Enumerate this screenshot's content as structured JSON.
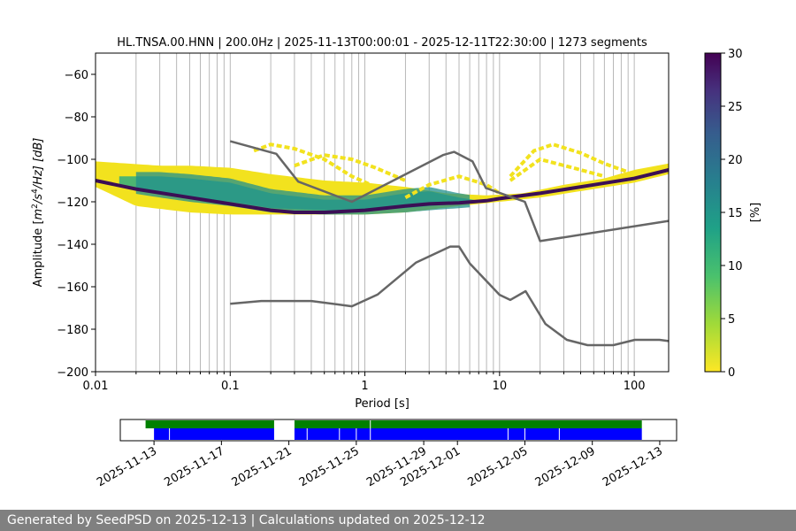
{
  "footer": {
    "text": "Generated by SeedPSD on 2025-12-13 | Calculations updated on 2025-12-12"
  },
  "chart_data": [
    {
      "type": "heatmap",
      "title": "HL.TNSA.00.HNN | 200.0Hz | 2025-11-13T00:00:01 - 2025-12-11T22:30:00 | 1273 segments",
      "xlabel": "Period [s]",
      "ylabel_parts": {
        "prefix": "Amplitude [",
        "m": "m",
        "exp2": "2",
        "mid": "/s",
        "exp4": "4",
        "suffix": "/Hz] [dB]"
      },
      "x_scale": "log",
      "xlim": [
        0.01,
        180
      ],
      "ylim": [
        -200,
        -50
      ],
      "x_ticks": [
        {
          "value": 0.01,
          "label": "0.01"
        },
        {
          "value": 0.1,
          "label": "0.1"
        },
        {
          "value": 1,
          "label": "1"
        },
        {
          "value": 10,
          "label": "10"
        },
        {
          "value": 100,
          "label": "100"
        }
      ],
      "y_ticks": [
        {
          "value": -60,
          "label": "−60"
        },
        {
          "value": -80,
          "label": "−80"
        },
        {
          "value": -100,
          "label": "−100"
        },
        {
          "value": -120,
          "label": "−120"
        },
        {
          "value": -140,
          "label": "−140"
        },
        {
          "value": -160,
          "label": "−160"
        },
        {
          "value": -180,
          "label": "−180"
        },
        {
          "value": -200,
          "label": "−200"
        }
      ],
      "grid": "x-major-and-minor",
      "colorbar": {
        "label": "[%]",
        "min": 0,
        "max": 30,
        "ticks": [
          {
            "value": 0,
            "label": "0"
          },
          {
            "value": 5,
            "label": "5"
          },
          {
            "value": 10,
            "label": "10"
          },
          {
            "value": 15,
            "label": "15"
          },
          {
            "value": 20,
            "label": "20"
          },
          {
            "value": 25,
            "label": "25"
          },
          {
            "value": 30,
            "label": "30"
          }
        ],
        "colormap": "viridis_r"
      },
      "density": {
        "mode_curve": [
          [
            0.01,
            -110
          ],
          [
            0.02,
            -114
          ],
          [
            0.05,
            -118
          ],
          [
            0.1,
            -121
          ],
          [
            0.2,
            -124
          ],
          [
            0.3,
            -125
          ],
          [
            0.5,
            -125
          ],
          [
            1,
            -124
          ],
          [
            2,
            -122
          ],
          [
            3,
            -121
          ],
          [
            5,
            -120.5
          ],
          [
            8,
            -119.5
          ],
          [
            10,
            -118.5
          ],
          [
            20,
            -116
          ],
          [
            50,
            -112
          ],
          [
            100,
            -109
          ],
          [
            180,
            -105
          ]
        ],
        "yellow_band_top": [
          [
            0.01,
            -101
          ],
          [
            0.03,
            -103
          ],
          [
            0.05,
            -103
          ],
          [
            0.1,
            -104
          ],
          [
            0.2,
            -107
          ],
          [
            0.5,
            -110
          ],
          [
            1,
            -111
          ],
          [
            2,
            -113
          ],
          [
            4,
            -116
          ],
          [
            8,
            -117
          ],
          [
            15,
            -116
          ],
          [
            30,
            -112
          ],
          [
            60,
            -109
          ],
          [
            100,
            -105
          ],
          [
            180,
            -102
          ]
        ],
        "yellow_band_bottom": [
          [
            0.01,
            -113
          ],
          [
            0.02,
            -122
          ],
          [
            0.05,
            -125
          ],
          [
            0.1,
            -126
          ],
          [
            0.3,
            -126
          ],
          [
            1,
            -126
          ],
          [
            2,
            -125
          ],
          [
            5,
            -122
          ],
          [
            10,
            -120
          ],
          [
            20,
            -118
          ],
          [
            50,
            -114
          ],
          [
            100,
            -111
          ],
          [
            180,
            -107
          ]
        ],
        "green_band_top": [
          [
            0.015,
            -108
          ],
          [
            0.03,
            -108
          ],
          [
            0.05,
            -109
          ],
          [
            0.1,
            -111
          ],
          [
            0.2,
            -116
          ],
          [
            0.5,
            -119
          ],
          [
            1,
            -119
          ],
          [
            2,
            -116
          ],
          [
            3,
            -115
          ],
          [
            5,
            -118
          ],
          [
            8,
            -120
          ]
        ],
        "green_band_bottom": [
          [
            0.015,
            -113
          ],
          [
            0.03,
            -116
          ],
          [
            0.05,
            -118
          ],
          [
            0.1,
            -120
          ],
          [
            0.2,
            -123
          ],
          [
            0.5,
            -124
          ],
          [
            1,
            -124
          ],
          [
            2,
            -123
          ],
          [
            3,
            -122
          ],
          [
            5,
            -121
          ],
          [
            8,
            -120
          ]
        ],
        "arcs": [
          [
            [
              0.15,
              -96
            ],
            [
              0.2,
              -93
            ],
            [
              0.3,
              -95
            ],
            [
              0.5,
              -100
            ],
            [
              0.8,
              -108
            ],
            [
              1.2,
              -113
            ]
          ],
          [
            [
              0.3,
              -103
            ],
            [
              0.5,
              -98
            ],
            [
              0.8,
              -100
            ],
            [
              1.2,
              -104
            ],
            [
              2,
              -110
            ]
          ],
          [
            [
              2,
              -118
            ],
            [
              3,
              -112
            ],
            [
              5,
              -108
            ],
            [
              8,
              -112
            ],
            [
              10,
              -116
            ]
          ],
          [
            [
              12,
              -108
            ],
            [
              18,
              -96
            ],
            [
              25,
              -93
            ],
            [
              40,
              -97
            ],
            [
              60,
              -102
            ],
            [
              90,
              -106
            ]
          ],
          [
            [
              12,
              -110
            ],
            [
              20,
              -100
            ],
            [
              35,
              -104
            ],
            [
              60,
              -108
            ]
          ]
        ]
      },
      "noise_models": [
        {
          "points": [
            [
              0.1,
              -91.5
            ],
            [
              0.22,
              -97.4
            ],
            [
              0.32,
              -110.5
            ],
            [
              0.8,
              -120
            ],
            [
              3.8,
              -98
            ],
            [
              4.6,
              -96.5
            ],
            [
              6.3,
              -101
            ],
            [
              7.9,
              -113.5
            ],
            [
              15.4,
              -120
            ],
            [
              20,
              -138.5
            ],
            [
              180,
              -129
            ]
          ]
        },
        {
          "points": [
            [
              0.1,
              -168
            ],
            [
              0.17,
              -166.7
            ],
            [
              0.4,
              -166.7
            ],
            [
              0.8,
              -169.2
            ],
            [
              1.24,
              -163.7
            ],
            [
              2.4,
              -148.6
            ],
            [
              4.3,
              -141.1
            ],
            [
              5,
              -141.1
            ],
            [
              6,
              -149
            ],
            [
              10,
              -163.8
            ],
            [
              12,
              -166.2
            ],
            [
              15.6,
              -162.1
            ],
            [
              21.9,
              -177.5
            ],
            [
              31.6,
              -185
            ],
            [
              45,
              -187.5
            ],
            [
              70,
              -187.5
            ],
            [
              101,
              -185
            ],
            [
              154,
              -185
            ],
            [
              180,
              -185.6
            ]
          ]
        }
      ]
    },
    {
      "type": "bar",
      "title": "",
      "x_type": "date",
      "xlim": [
        "2025-11-11",
        "2025-12-14"
      ],
      "x_ticks": [
        "2025-11-13",
        "2025-11-17",
        "2025-11-21",
        "2025-11-25",
        "2025-11-29",
        "2025-12-01",
        "2025-12-05",
        "2025-12-09",
        "2025-12-13"
      ],
      "colors": {
        "top": "#008000",
        "bottom": "#0000ff"
      },
      "top_bar_spans": [
        [
          "2025-11-12T12:00",
          "2025-11-20T03:00"
        ],
        [
          "2025-11-21T08:00",
          "2025-12-11T22:30"
        ]
      ],
      "bottom_bar_spans": [
        [
          "2025-11-13T00:00",
          "2025-11-20T03:00"
        ],
        [
          "2025-11-21T08:00",
          "2025-12-11T22:30"
        ]
      ],
      "bottom_bar_gaps": [
        "2025-11-13T22:00",
        "2025-11-22T02:00",
        "2025-11-24T00:00",
        "2025-11-25T00:00",
        "2025-11-25T20:00",
        "2025-12-04T00:00",
        "2025-12-05T00:00",
        "2025-12-07T01:00"
      ],
      "top_bar_gaps": [
        "2025-11-25T20:00"
      ]
    }
  ]
}
